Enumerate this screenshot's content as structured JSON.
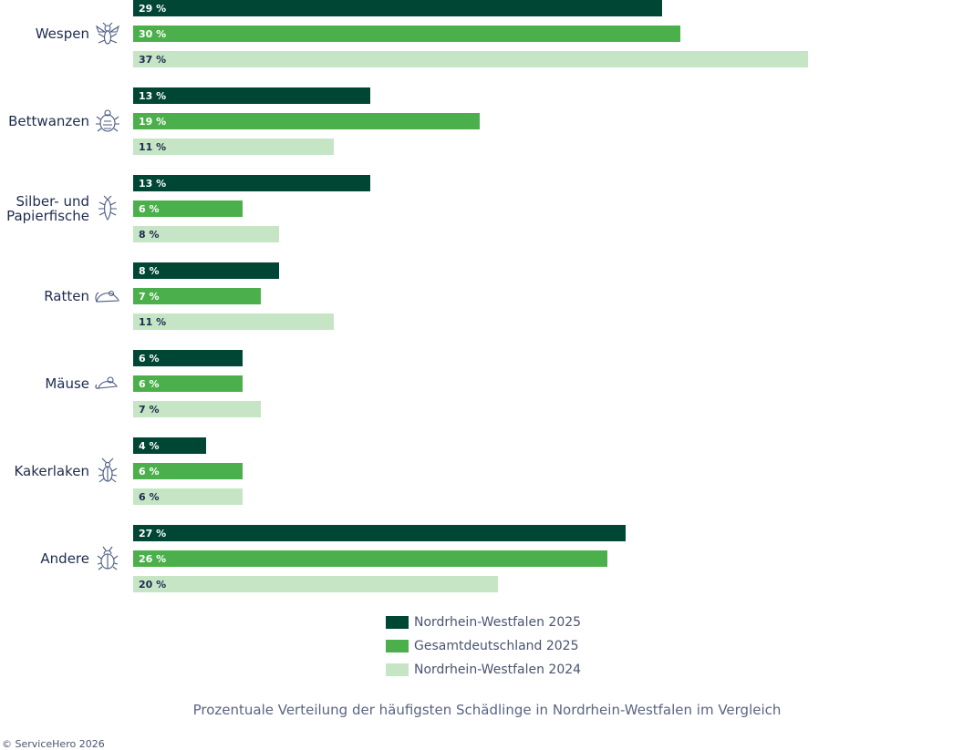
{
  "chart_data": {
    "type": "bar",
    "orientation": "horizontal",
    "categories": [
      {
        "label": "Wespen",
        "icon": "wasp-icon"
      },
      {
        "label": "Bettwanzen",
        "icon": "bedbug-icon"
      },
      {
        "label": "Silber- und Papierfische",
        "icon": "silverfish-icon"
      },
      {
        "label": "Ratten",
        "icon": "rat-icon"
      },
      {
        "label": "Mäuse",
        "icon": "mouse-icon"
      },
      {
        "label": "Kakerlaken",
        "icon": "cockroach-icon"
      },
      {
        "label": "Andere",
        "icon": "beetle-icon"
      }
    ],
    "series": [
      {
        "name": "Nordrhein-Westfalen 2025",
        "color": "#004634",
        "label_color": "#ffffff",
        "values": [
          29,
          13,
          13,
          8,
          6,
          4,
          27
        ],
        "labels": [
          "29 %",
          "13 %",
          "13 %",
          "8 %",
          "6 %",
          "4 %",
          "27 %"
        ]
      },
      {
        "name": "Gesamtdeutschland 2025",
        "color": "#4bb04b",
        "label_color": "#ffffff",
        "values": [
          30,
          19,
          6,
          7,
          6,
          6,
          26
        ],
        "labels": [
          "30 %",
          "19 %",
          "6 %",
          "7 %",
          "6 %",
          "6 %",
          "26 %"
        ]
      },
      {
        "name": "Nordrhein-Westfalen 2024",
        "color": "#c5e5c5",
        "label_color": "#1d2b4f",
        "values": [
          37,
          11,
          8,
          11,
          7,
          6,
          20
        ],
        "labels": [
          "37 %",
          "11 %",
          "8 %",
          "11 %",
          "7 %",
          "6 %",
          "20 %"
        ]
      }
    ],
    "xlim": [
      0,
      37
    ],
    "grid": false,
    "legend_position": "bottom-center",
    "title": "Prozentuale Verteilung der häufigsten Schädlinge in Nordrhein-Westfalen im Vergleich"
  },
  "footer": {
    "caption": "Prozentuale Verteilung der häufigsten Schädlinge in Nordrhein-Westfalen im Vergleich",
    "copyright": "© ServiceHero 2026"
  }
}
